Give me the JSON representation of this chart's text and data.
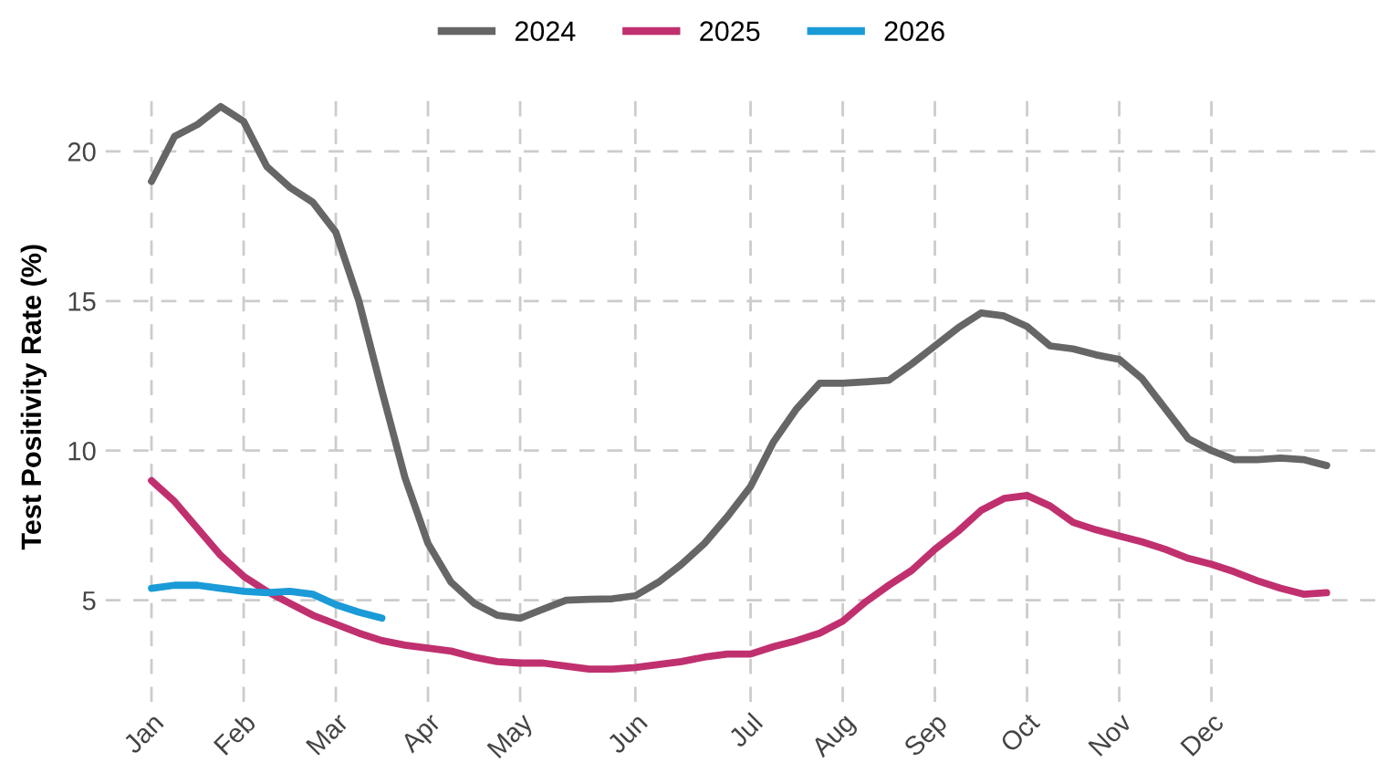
{
  "chart_data": {
    "type": "line",
    "ylabel": "Test Positivity Rate (%)",
    "categories": [
      "Jan",
      null,
      null,
      null,
      "Feb",
      null,
      null,
      null,
      "Mar",
      null,
      null,
      null,
      "Apr",
      null,
      null,
      null,
      "May",
      null,
      null,
      null,
      null,
      "Jun",
      null,
      null,
      null,
      null,
      "Jul",
      null,
      null,
      null,
      "Aug",
      null,
      null,
      null,
      "Sep",
      null,
      null,
      null,
      "Oct",
      null,
      null,
      null,
      "Nov",
      null,
      null,
      null,
      "Dec",
      null,
      null,
      null,
      null,
      null
    ],
    "ylim": [
      1.6,
      22
    ],
    "yticks": [
      5,
      10,
      15,
      20
    ],
    "grid": true,
    "legend": "top",
    "marker": "none",
    "line_style": "solid",
    "series": [
      {
        "name": "2024",
        "color": "#666666",
        "values": [
          19.0,
          20.5,
          20.9,
          21.5,
          21.0,
          19.5,
          18.8,
          18.3,
          17.3,
          15.0,
          12.0,
          9.1,
          6.9,
          5.6,
          4.9,
          4.5,
          4.4,
          4.7,
          5.0,
          5.03,
          5.05,
          5.15,
          5.6,
          6.2,
          6.9,
          7.8,
          8.8,
          10.3,
          11.4,
          12.25,
          12.25,
          12.3,
          12.35,
          12.9,
          13.5,
          14.1,
          14.6,
          14.5,
          14.15,
          13.5,
          13.4,
          13.2,
          13.05,
          12.4,
          11.4,
          10.4,
          10.0,
          9.7,
          9.7,
          9.75,
          9.7,
          9.5
        ]
      },
      {
        "name": "2025",
        "color": "#c0306f",
        "values": [
          9.0,
          8.3,
          7.4,
          6.5,
          5.8,
          5.3,
          4.9,
          4.5,
          4.2,
          3.9,
          3.65,
          3.5,
          3.4,
          3.3,
          3.1,
          2.95,
          2.9,
          2.9,
          2.8,
          2.7,
          2.7,
          2.75,
          2.85,
          2.95,
          3.1,
          3.2,
          3.2,
          3.45,
          3.65,
          3.9,
          4.3,
          4.95,
          5.5,
          6.0,
          6.7,
          7.3,
          8.0,
          8.4,
          8.5,
          8.15,
          7.6,
          7.35,
          7.15,
          6.95,
          6.7,
          6.4,
          6.2,
          5.95,
          5.65,
          5.4,
          5.2,
          5.25
        ]
      },
      {
        "name": "2026",
        "color": "#1a9bd7",
        "values": [
          5.4,
          5.5,
          5.5,
          5.4,
          5.3,
          5.25,
          5.3,
          5.2,
          4.85,
          4.6,
          4.4,
          null,
          null,
          null,
          null,
          null,
          null,
          null,
          null,
          null,
          null,
          null,
          null,
          null,
          null,
          null,
          null,
          null,
          null,
          null,
          null,
          null,
          null,
          null,
          null,
          null,
          null,
          null,
          null,
          null,
          null,
          null,
          null,
          null,
          null,
          null,
          null,
          null,
          null,
          null,
          null,
          null
        ]
      }
    ]
  }
}
